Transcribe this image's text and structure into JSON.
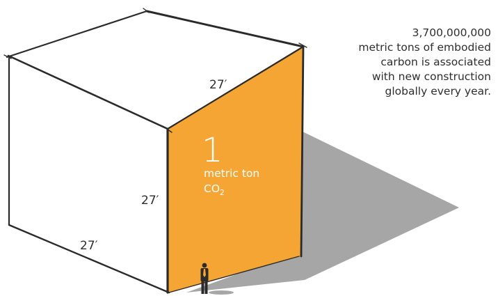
{
  "annotation": {
    "lines": [
      "3,700,000,000",
      "metric tons of embodied",
      "carbon is associated",
      "with new construction",
      "globally every year."
    ]
  },
  "cube": {
    "edge_top": "27′",
    "edge_front": "27′",
    "edge_bottom": "27′",
    "face_number": "1",
    "face_unit": "metric ton",
    "face_chem_base": "CO",
    "face_chem_sub": "2"
  },
  "colors": {
    "face": "#F4A533",
    "shadow": "#A6A6A6",
    "line": "#2a2a2a",
    "text": "#2e2e2e",
    "face_text": "#ffffff",
    "figure": "#2b2b2b",
    "tie": "#F4A533"
  }
}
